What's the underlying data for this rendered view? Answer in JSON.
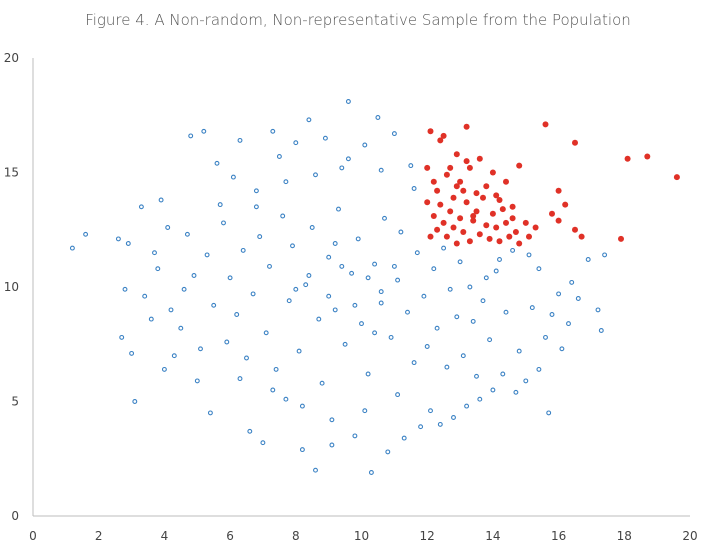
{
  "chart_data": {
    "type": "scatter",
    "title": "Figure 4. A Non-random, Non-representative Sample from the Population",
    "xlabel": "",
    "ylabel": "",
    "xlim": [
      0,
      20
    ],
    "ylim": [
      0,
      20
    ],
    "x_ticks": [
      "0",
      "2",
      "4",
      "6",
      "8",
      "10",
      "12",
      "14",
      "16",
      "18",
      "20"
    ],
    "y_ticks": [
      "0",
      "5",
      "10",
      "15",
      "20"
    ],
    "grid": false,
    "legend": "none",
    "colors": {
      "population": "#3b82c4",
      "sample": "#e03127"
    },
    "series": [
      {
        "key": "population",
        "marker": "hollow-circle",
        "points": [
          [
            1.2,
            11.7
          ],
          [
            1.6,
            12.3
          ],
          [
            2.6,
            12.1
          ],
          [
            2.7,
            7.8
          ],
          [
            2.9,
            11.9
          ],
          [
            3.0,
            7.1
          ],
          [
            3.1,
            5.0
          ],
          [
            3.3,
            13.5
          ],
          [
            3.6,
            8.6
          ],
          [
            3.7,
            11.5
          ],
          [
            3.9,
            13.8
          ],
          [
            4.1,
            12.6
          ],
          [
            4.3,
            7.0
          ],
          [
            4.6,
            9.9
          ],
          [
            4.8,
            16.6
          ],
          [
            5.0,
            5.9
          ],
          [
            5.2,
            16.8
          ],
          [
            5.4,
            4.5
          ],
          [
            5.6,
            15.4
          ],
          [
            5.9,
            7.6
          ],
          [
            6.1,
            14.8
          ],
          [
            6.3,
            16.4
          ],
          [
            6.6,
            3.7
          ],
          [
            6.8,
            13.5
          ],
          [
            7.0,
            3.2
          ],
          [
            7.3,
            16.8
          ],
          [
            7.5,
            15.7
          ],
          [
            7.7,
            5.1
          ],
          [
            8.0,
            16.3
          ],
          [
            8.2,
            2.9
          ],
          [
            8.4,
            17.3
          ],
          [
            8.6,
            2.0
          ],
          [
            8.9,
            16.5
          ],
          [
            9.1,
            3.1
          ],
          [
            9.4,
            15.2
          ],
          [
            9.6,
            18.1
          ],
          [
            9.8,
            3.5
          ],
          [
            10.1,
            16.2
          ],
          [
            10.3,
            1.9
          ],
          [
            10.5,
            17.4
          ],
          [
            10.8,
            2.8
          ],
          [
            11.0,
            16.7
          ],
          [
            11.3,
            3.4
          ],
          [
            11.5,
            15.3
          ],
          [
            11.8,
            3.9
          ],
          [
            12.1,
            4.6
          ],
          [
            12.4,
            4.0
          ],
          [
            12.8,
            4.3
          ],
          [
            13.2,
            4.8
          ],
          [
            13.6,
            5.1
          ],
          [
            14.0,
            5.5
          ],
          [
            14.3,
            6.2
          ],
          [
            14.7,
            5.4
          ],
          [
            15.0,
            5.9
          ],
          [
            15.4,
            6.4
          ],
          [
            15.7,
            4.5
          ],
          [
            16.1,
            7.3
          ],
          [
            16.3,
            8.4
          ],
          [
            16.6,
            9.5
          ],
          [
            16.9,
            11.2
          ],
          [
            17.2,
            9.0
          ],
          [
            17.3,
            8.1
          ],
          [
            17.4,
            11.4
          ],
          [
            16.4,
            10.2
          ],
          [
            15.8,
            8.8
          ],
          [
            15.4,
            10.8
          ],
          [
            15.1,
            11.4
          ],
          [
            14.6,
            11.6
          ],
          [
            14.2,
            11.2
          ],
          [
            13.8,
            10.4
          ],
          [
            4.5,
            8.2
          ],
          [
            4.9,
            10.5
          ],
          [
            5.3,
            11.4
          ],
          [
            5.5,
            9.2
          ],
          [
            5.8,
            12.8
          ],
          [
            6.0,
            10.4
          ],
          [
            6.2,
            8.8
          ],
          [
            6.4,
            11.6
          ],
          [
            6.5,
            6.9
          ],
          [
            6.7,
            9.7
          ],
          [
            6.9,
            12.2
          ],
          [
            7.1,
            8.0
          ],
          [
            7.2,
            10.9
          ],
          [
            7.4,
            6.4
          ],
          [
            7.6,
            13.1
          ],
          [
            7.8,
            9.4
          ],
          [
            7.9,
            11.8
          ],
          [
            8.1,
            7.2
          ],
          [
            8.3,
            10.1
          ],
          [
            8.5,
            12.6
          ],
          [
            8.7,
            8.6
          ],
          [
            8.8,
            5.8
          ],
          [
            9.0,
            11.3
          ],
          [
            9.2,
            9.0
          ],
          [
            9.3,
            13.4
          ],
          [
            9.5,
            7.5
          ],
          [
            9.7,
            10.6
          ],
          [
            9.9,
            12.1
          ],
          [
            10.0,
            8.4
          ],
          [
            10.2,
            6.2
          ],
          [
            10.4,
            11.0
          ],
          [
            10.6,
            9.3
          ],
          [
            10.7,
            13.0
          ],
          [
            10.9,
            7.8
          ],
          [
            11.1,
            10.3
          ],
          [
            11.2,
            12.4
          ],
          [
            11.4,
            8.9
          ],
          [
            11.6,
            6.7
          ],
          [
            11.7,
            11.5
          ],
          [
            11.9,
            9.6
          ],
          [
            12.0,
            7.4
          ],
          [
            12.2,
            10.8
          ],
          [
            12.3,
            8.2
          ],
          [
            12.5,
            11.7
          ],
          [
            12.6,
            6.5
          ],
          [
            12.7,
            9.9
          ],
          [
            12.9,
            8.7
          ],
          [
            13.0,
            11.1
          ],
          [
            13.1,
            7.0
          ],
          [
            13.3,
            10.0
          ],
          [
            13.4,
            8.5
          ],
          [
            13.5,
            6.1
          ],
          [
            13.7,
            9.4
          ],
          [
            13.9,
            7.7
          ],
          [
            14.1,
            10.7
          ],
          [
            14.4,
            8.9
          ],
          [
            14.8,
            7.2
          ],
          [
            15.2,
            9.1
          ],
          [
            15.6,
            7.8
          ],
          [
            16.0,
            9.7
          ],
          [
            5.1,
            7.3
          ],
          [
            5.7,
            13.6
          ],
          [
            6.3,
            6.0
          ],
          [
            6.8,
            14.2
          ],
          [
            7.3,
            5.5
          ],
          [
            7.7,
            14.6
          ],
          [
            8.2,
            4.8
          ],
          [
            8.6,
            14.9
          ],
          [
            9.1,
            4.2
          ],
          [
            9.6,
            15.6
          ],
          [
            10.1,
            4.6
          ],
          [
            10.6,
            15.1
          ],
          [
            11.1,
            5.3
          ],
          [
            11.6,
            14.3
          ],
          [
            3.4,
            9.6
          ],
          [
            3.8,
            10.8
          ],
          [
            4.2,
            9.0
          ],
          [
            4.7,
            12.3
          ],
          [
            2.8,
            9.9
          ],
          [
            4.0,
            6.4
          ],
          [
            8.0,
            9.9
          ],
          [
            8.4,
            10.5
          ],
          [
            9.0,
            9.6
          ],
          [
            9.4,
            10.9
          ],
          [
            9.8,
            9.2
          ],
          [
            10.2,
            10.4
          ],
          [
            10.6,
            9.8
          ],
          [
            11.0,
            10.9
          ],
          [
            9.2,
            11.9
          ],
          [
            10.4,
            8.0
          ]
        ]
      },
      {
        "key": "sample",
        "marker": "filled-circle",
        "points": [
          [
            12.1,
            16.8
          ],
          [
            12.4,
            16.4
          ],
          [
            12.5,
            16.6
          ],
          [
            12.9,
            15.8
          ],
          [
            13.2,
            15.5
          ],
          [
            13.2,
            17.0
          ],
          [
            12.0,
            15.2
          ],
          [
            12.3,
            14.2
          ],
          [
            12.6,
            14.9
          ],
          [
            12.8,
            13.9
          ],
          [
            13.0,
            14.6
          ],
          [
            13.3,
            15.2
          ],
          [
            13.5,
            14.1
          ],
          [
            13.6,
            15.6
          ],
          [
            13.8,
            14.4
          ],
          [
            14.0,
            15.0
          ],
          [
            14.2,
            13.8
          ],
          [
            14.4,
            14.6
          ],
          [
            14.6,
            13.5
          ],
          [
            14.8,
            15.3
          ],
          [
            12.1,
            12.2
          ],
          [
            12.2,
            13.1
          ],
          [
            12.3,
            12.5
          ],
          [
            12.4,
            13.6
          ],
          [
            12.5,
            12.8
          ],
          [
            12.6,
            12.2
          ],
          [
            12.7,
            13.3
          ],
          [
            12.8,
            12.6
          ],
          [
            12.9,
            11.9
          ],
          [
            13.0,
            13.0
          ],
          [
            13.1,
            12.4
          ],
          [
            13.2,
            13.7
          ],
          [
            13.3,
            12.0
          ],
          [
            13.4,
            12.9
          ],
          [
            13.5,
            13.3
          ],
          [
            13.6,
            12.3
          ],
          [
            13.7,
            13.9
          ],
          [
            13.8,
            12.7
          ],
          [
            13.9,
            12.1
          ],
          [
            14.0,
            13.2
          ],
          [
            14.1,
            12.6
          ],
          [
            14.2,
            12.0
          ],
          [
            14.3,
            13.4
          ],
          [
            14.4,
            12.8
          ],
          [
            14.5,
            12.2
          ],
          [
            14.6,
            13.0
          ],
          [
            14.7,
            12.4
          ],
          [
            14.8,
            11.9
          ],
          [
            15.0,
            12.8
          ],
          [
            15.1,
            12.2
          ],
          [
            15.3,
            12.6
          ],
          [
            15.6,
            17.1
          ],
          [
            15.8,
            13.2
          ],
          [
            16.0,
            12.9
          ],
          [
            16.0,
            14.2
          ],
          [
            16.2,
            13.6
          ],
          [
            16.5,
            12.5
          ],
          [
            16.5,
            16.3
          ],
          [
            16.7,
            12.2
          ],
          [
            17.9,
            12.1
          ],
          [
            18.1,
            15.6
          ],
          [
            18.7,
            15.7
          ],
          [
            19.6,
            14.8
          ],
          [
            12.2,
            14.6
          ],
          [
            12.7,
            15.2
          ],
          [
            13.1,
            14.2
          ],
          [
            13.4,
            13.1
          ],
          [
            12.0,
            13.7
          ],
          [
            12.9,
            14.4
          ],
          [
            14.1,
            14.0
          ]
        ]
      }
    ]
  }
}
